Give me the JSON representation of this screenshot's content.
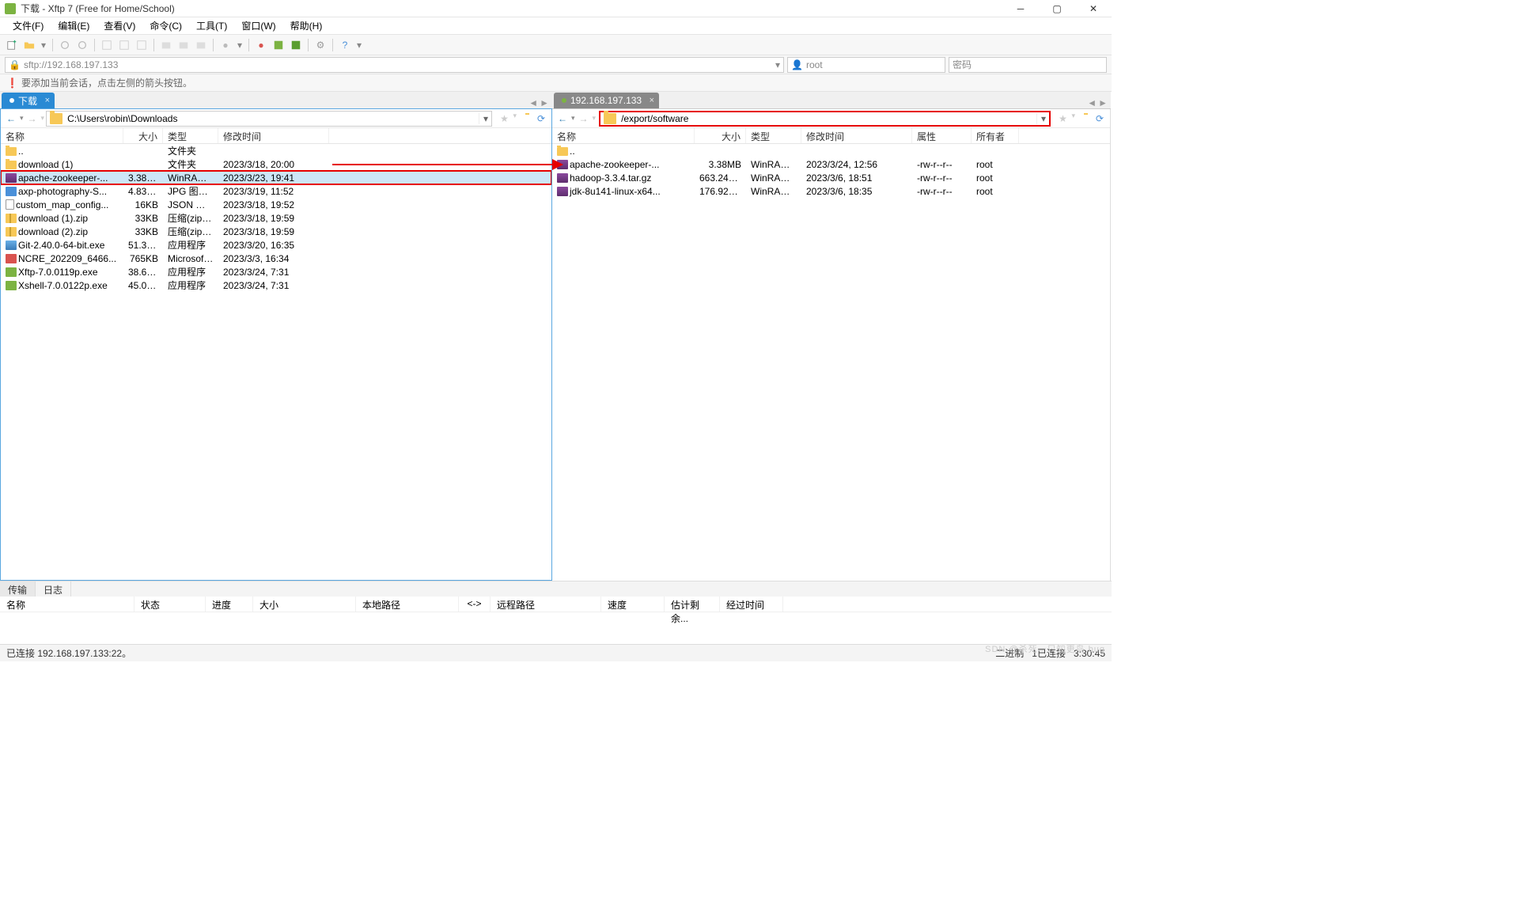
{
  "window": {
    "title": "下载 - Xftp 7 (Free for Home/School)"
  },
  "menu": [
    "文件(F)",
    "编辑(E)",
    "查看(V)",
    "命令(C)",
    "工具(T)",
    "窗口(W)",
    "帮助(H)"
  ],
  "addressbar": {
    "url": "sftp://192.168.197.133",
    "user_placeholder": "root",
    "pass_placeholder": "密码"
  },
  "hint": "要添加当前会话，点击左侧的箭头按钮。",
  "left": {
    "tab": "下载",
    "tab_dot_color": "#ffffff",
    "path": "C:\\Users\\robin\\Downloads",
    "headers": {
      "name": "名称",
      "size": "大小",
      "type": "类型",
      "mod": "修改时间"
    },
    "rows": [
      {
        "ic": "folder",
        "name": "..",
        "size": "",
        "type": "文件夹",
        "mod": ""
      },
      {
        "ic": "folder",
        "name": "download (1)",
        "size": "",
        "type": "文件夹",
        "mod": "2023/3/18, 20:00"
      },
      {
        "ic": "rar",
        "name": "apache-zookeeper-...",
        "size": "3.38MB",
        "type": "WinRAR ...",
        "mod": "2023/3/23, 19:41",
        "sel": true
      },
      {
        "ic": "jpg",
        "name": "axp-photography-S...",
        "size": "4.83MB",
        "type": "JPG 图片...",
        "mod": "2023/3/19, 11:52"
      },
      {
        "ic": "json",
        "name": "custom_map_config...",
        "size": "16KB",
        "type": "JSON 文件",
        "mod": "2023/3/18, 19:52"
      },
      {
        "ic": "zip",
        "name": "download (1).zip",
        "size": "33KB",
        "type": "压缩(zipp...",
        "mod": "2023/3/18, 19:59"
      },
      {
        "ic": "zip",
        "name": "download (2).zip",
        "size": "33KB",
        "type": "压缩(zipp...",
        "mod": "2023/3/18, 19:59"
      },
      {
        "ic": "exe",
        "name": "Git-2.40.0-64-bit.exe",
        "size": "51.30MB",
        "type": "应用程序",
        "mod": "2023/3/20, 16:35"
      },
      {
        "ic": "pdf",
        "name": "NCRE_202209_6466...",
        "size": "765KB",
        "type": "Microsoft...",
        "mod": "2023/3/3, 16:34"
      },
      {
        "ic": "green",
        "name": "Xftp-7.0.0119p.exe",
        "size": "38.60MB",
        "type": "应用程序",
        "mod": "2023/3/24, 7:31"
      },
      {
        "ic": "green",
        "name": "Xshell-7.0.0122p.exe",
        "size": "45.01MB",
        "type": "应用程序",
        "mod": "2023/3/24, 7:31"
      }
    ]
  },
  "right": {
    "tab": "192.168.197.133",
    "tab_dot_color": "#7cb342",
    "path": "/export/software",
    "headers": {
      "name": "名称",
      "size": "大小",
      "type": "类型",
      "mod": "修改时间",
      "attr": "属性",
      "own": "所有者"
    },
    "rows": [
      {
        "ic": "folder",
        "name": "..",
        "size": "",
        "type": "",
        "mod": "",
        "attr": "",
        "own": ""
      },
      {
        "ic": "rar",
        "name": "apache-zookeeper-...",
        "size": "3.38MB",
        "type": "WinRAR ...",
        "mod": "2023/3/24, 12:56",
        "attr": "-rw-r--r--",
        "own": "root"
      },
      {
        "ic": "rar",
        "name": "hadoop-3.3.4.tar.gz",
        "size": "663.24MB",
        "type": "WinRAR ...",
        "mod": "2023/3/6, 18:51",
        "attr": "-rw-r--r--",
        "own": "root"
      },
      {
        "ic": "rar",
        "name": "jdk-8u141-linux-x64...",
        "size": "176.92MB",
        "type": "WinRAR ...",
        "mod": "2023/3/6, 18:35",
        "attr": "-rw-r--r--",
        "own": "root"
      }
    ]
  },
  "bottom": {
    "tabs": [
      "传输",
      "日志"
    ],
    "headers": [
      "名称",
      "状态",
      "进度",
      "大小",
      "本地路径",
      "<->",
      "远程路径",
      "速度",
      "估计剩余...",
      "经过时间"
    ]
  },
  "status": {
    "left": "已连接 192.168.197.133:22。",
    "binary": "二进制",
    "conn": "1已连接",
    "time": "3:30:45"
  },
  "watermark": "SDN @杀死一只知更鸟 bug"
}
